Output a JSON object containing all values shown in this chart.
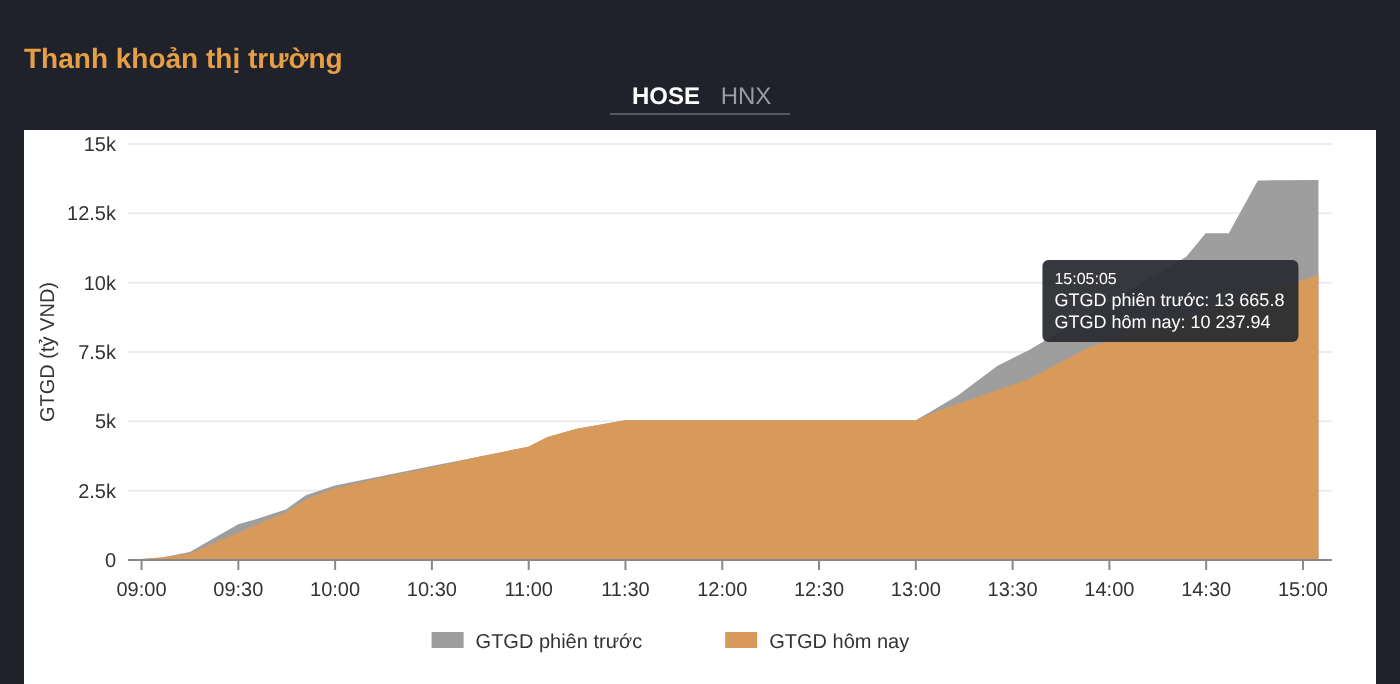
{
  "chart_data": {
    "type": "area",
    "title": "Thanh khoản thị trường",
    "subtitle": "HOSE   HNX",
    "ylabel": "GTGD (tỷ VND)",
    "xlim": [
      8.93,
      15.15
    ],
    "xticks": [
      {
        "value": 9,
        "label": "09:00"
      },
      {
        "value": 9.5,
        "label": "09:30"
      },
      {
        "value": 10,
        "label": "10:00"
      },
      {
        "value": 10.5,
        "label": "10:30"
      },
      {
        "value": 11,
        "label": "11:00"
      },
      {
        "value": 11.5,
        "label": "11:30"
      },
      {
        "value": 12,
        "label": "12:00"
      },
      {
        "value": 12.5,
        "label": "12:30"
      },
      {
        "value": 13,
        "label": "13:00"
      },
      {
        "value": 13.5,
        "label": "13:30"
      },
      {
        "value": 14,
        "label": "14:00"
      },
      {
        "value": 14.5,
        "label": "14:30"
      },
      {
        "value": 15,
        "label": "15:00"
      }
    ],
    "ylim": [
      0,
      15000
    ],
    "yticks": [
      {
        "value": 0,
        "label": "0"
      },
      {
        "value": 2500,
        "label": "2.5k"
      },
      {
        "value": 5000,
        "label": "5k"
      },
      {
        "value": 7500,
        "label": "7.5k"
      },
      {
        "value": 10000,
        "label": "10k"
      },
      {
        "value": 12500,
        "label": "12.5k"
      },
      {
        "value": 15000,
        "label": "15k"
      }
    ],
    "grid": "y",
    "legend": "bottom",
    "series": [
      {
        "name": "GTGD phiên trước",
        "color": "#9e9e9e",
        "x": [
          9,
          9.1,
          9.25,
          9.4,
          9.5,
          9.6,
          9.75,
          9.85,
          10,
          10.25,
          10.5,
          10.75,
          11,
          11.1,
          11.25,
          11.5,
          13,
          13.1,
          13.22,
          13.42,
          13.59,
          14.4,
          14.5,
          14.62,
          14.77,
          15.08
        ],
        "values": [
          0,
          50,
          250,
          850,
          1250,
          1450,
          1800,
          2300,
          2650,
          3000,
          3350,
          3700,
          4050,
          4400,
          4700,
          5000,
          5000,
          5400,
          5900,
          6950,
          7550,
          10900,
          11750,
          11750,
          13650,
          13665.8
        ]
      },
      {
        "name": "GTGD hôm nay",
        "color": "#d89a5b",
        "x": [
          9,
          9.1,
          9.25,
          9.5,
          9.75,
          9.85,
          10,
          10.25,
          10.5,
          10.75,
          11,
          11.1,
          11.25,
          11.5,
          13,
          13.1,
          13.59,
          13.9,
          15.08
        ],
        "values": [
          0,
          50,
          200,
          950,
          1700,
          2150,
          2550,
          2950,
          3300,
          3700,
          4050,
          4400,
          4700,
          5000,
          5000,
          5300,
          6500,
          7650,
          10237.94
        ]
      }
    ],
    "annotations": [
      {
        "text": "15:05:05\nGTGD phiên trước: 13 665.8\nGTGD hôm nay: 10 237.94",
        "x": 15.08,
        "y": 10237.94
      }
    ]
  }
}
